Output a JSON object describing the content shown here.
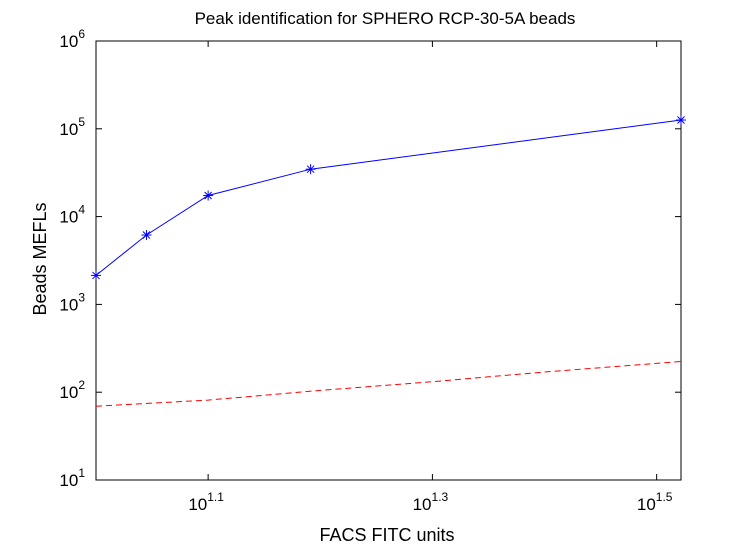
{
  "chart_data": {
    "type": "line",
    "title": "Peak identification for SPHERO RCP-30-5A beads",
    "xlabel": "FACS FITC units",
    "ylabel": "Beads MEFLs",
    "x_scale": "log",
    "y_scale": "log",
    "xlim": [
      1.0,
      1.5217
    ],
    "ylim": [
      1,
      6
    ],
    "x_ticks": [
      {
        "base": "10",
        "exp": "1.1",
        "value": 1.1
      },
      {
        "base": "10",
        "exp": "1.3",
        "value": 1.3
      },
      {
        "base": "10",
        "exp": "1.5",
        "value": 1.5
      }
    ],
    "y_ticks": [
      {
        "base": "10",
        "exp": "1",
        "value": 1
      },
      {
        "base": "10",
        "exp": "2",
        "value": 2
      },
      {
        "base": "10",
        "exp": "3",
        "value": 3
      },
      {
        "base": "10",
        "exp": "4",
        "value": 4
      },
      {
        "base": "10",
        "exp": "5",
        "value": 5
      },
      {
        "base": "10",
        "exp": "6",
        "value": 6
      }
    ],
    "grid": false,
    "legend": false,
    "series": [
      {
        "style": "solid",
        "marker": "asterisk",
        "color": "#0000ff",
        "points": [
          {
            "x": 1.0,
            "y": 3.33
          },
          {
            "x": 1.045,
            "y": 3.79
          },
          {
            "x": 1.1,
            "y": 4.24
          },
          {
            "x": 1.1914,
            "y": 4.54
          },
          {
            "x": 1.5217,
            "y": 5.1
          }
        ]
      },
      {
        "style": "dashed",
        "marker": "none",
        "color": "#ff0000",
        "points": [
          {
            "x": 1.0,
            "y": 1.84
          },
          {
            "x": 1.1,
            "y": 1.91
          },
          {
            "x": 1.2,
            "y": 2.02
          },
          {
            "x": 1.3,
            "y": 2.12
          },
          {
            "x": 1.4,
            "y": 2.23
          },
          {
            "x": 1.5217,
            "y": 2.35
          }
        ]
      }
    ]
  }
}
